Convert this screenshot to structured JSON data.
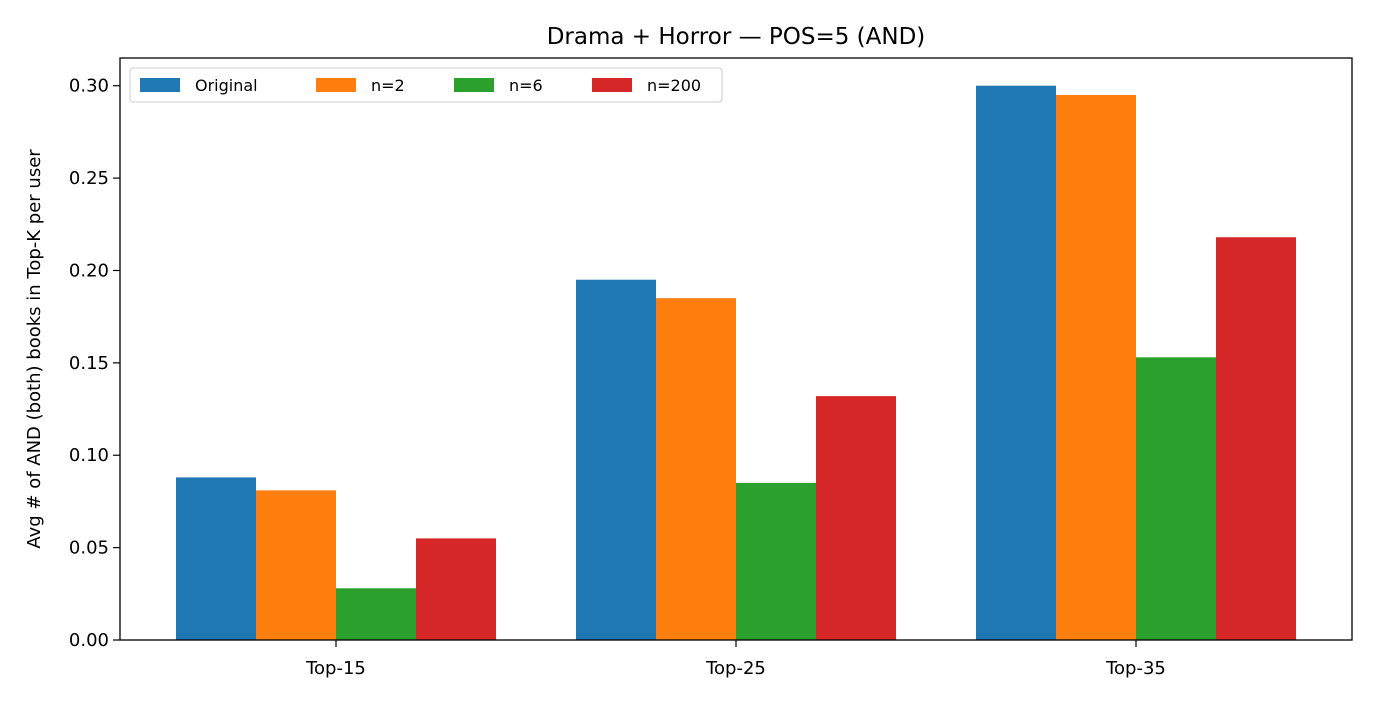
{
  "chart_data": {
    "type": "bar",
    "title": "Drama + Horror — POS=5 (AND)",
    "xlabel": "",
    "ylabel": "Avg # of AND (both) books in Top-K per user",
    "categories": [
      "Top-15",
      "Top-25",
      "Top-35"
    ],
    "series": [
      {
        "name": "Original",
        "color": "#1f77b4",
        "values": [
          0.088,
          0.195,
          0.3
        ]
      },
      {
        "name": "n=2",
        "color": "#ff7f0e",
        "values": [
          0.081,
          0.185,
          0.295
        ]
      },
      {
        "name": "n=6",
        "color": "#2ca02c",
        "values": [
          0.028,
          0.085,
          0.153
        ]
      },
      {
        "name": "n=200",
        "color": "#d62728",
        "values": [
          0.055,
          0.132,
          0.218
        ]
      }
    ],
    "ylim": [
      0,
      0.315
    ],
    "yticks": [
      "0.00",
      "0.05",
      "0.10",
      "0.15",
      "0.20",
      "0.25",
      "0.30"
    ],
    "grid": false,
    "legend_position": "top-left"
  }
}
